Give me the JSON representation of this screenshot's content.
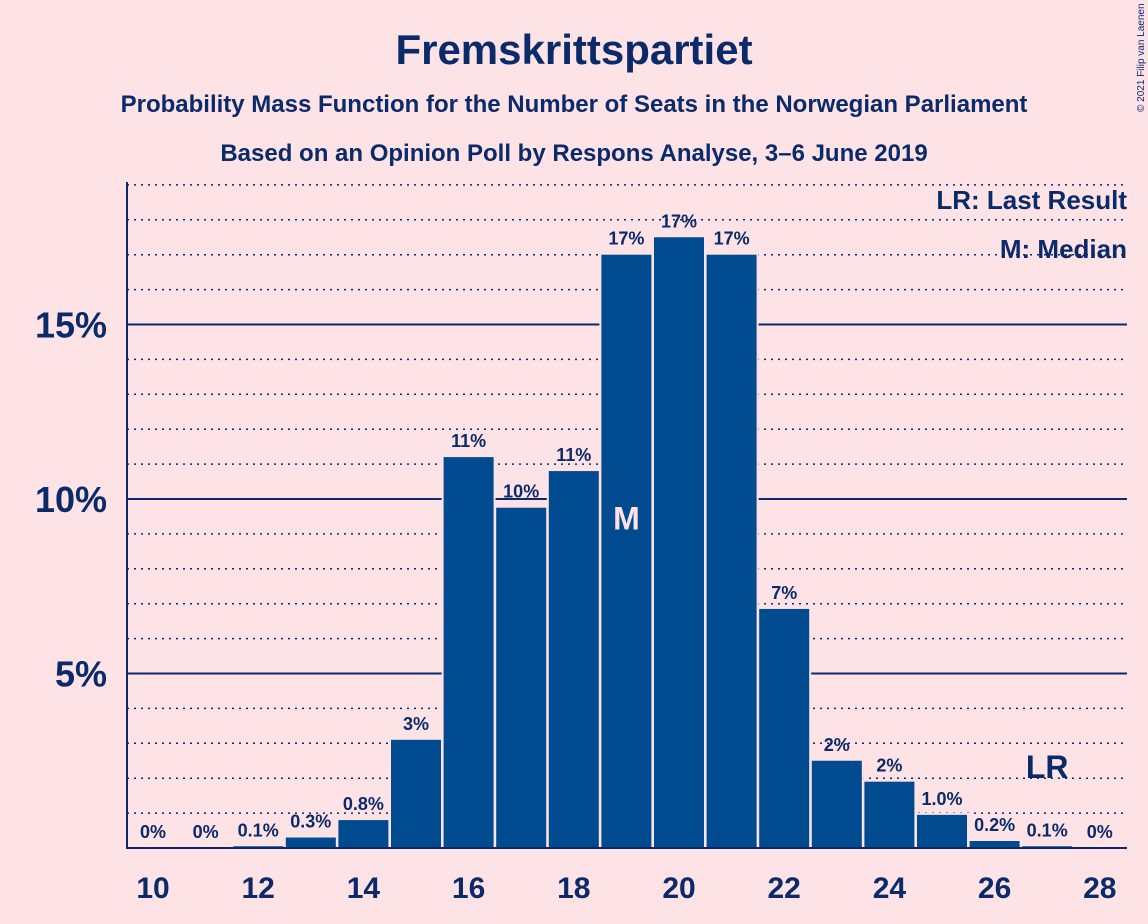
{
  "title": "Fremskrittspartiet",
  "subtitle1": "Probability Mass Function for the Number of Seats in the Norwegian Parliament",
  "subtitle2": "Based on an Opinion Poll by Respons Analyse, 3–6 June 2019",
  "copyright": "© 2021 Filip van Laenen",
  "legend": {
    "lr": "LR: Last Result",
    "m": "M: Median"
  },
  "colors": {
    "background": "#fde3e6",
    "bar": "#004a8f",
    "text": "#0a2a6a"
  },
  "chart_data": {
    "type": "bar",
    "x": [
      10,
      11,
      12,
      13,
      14,
      15,
      16,
      17,
      18,
      19,
      20,
      21,
      22,
      23,
      24,
      25,
      26,
      27,
      28
    ],
    "values": [
      0,
      0,
      0.05,
      0.3,
      0.8,
      3.1,
      11.2,
      9.75,
      10.8,
      17.0,
      17.5,
      17.0,
      6.85,
      2.5,
      1.9,
      0.95,
      0.2,
      0.05,
      0
    ],
    "labels": [
      "0%",
      "0%",
      "0.1%",
      "0.3%",
      "0.8%",
      "3%",
      "11%",
      "10%",
      "11%",
      "17%",
      "17%",
      "17%",
      "7%",
      "2%",
      "2%",
      "1.0%",
      "0.2%",
      "0.1%",
      "0%"
    ],
    "x_tick_labels": [
      "10",
      "12",
      "14",
      "16",
      "18",
      "20",
      "22",
      "24",
      "26",
      "28"
    ],
    "y_ticks": [
      5,
      10,
      15
    ],
    "y_tick_labels": [
      "5%",
      "10%",
      "15%"
    ],
    "y_minor_step": 1,
    "ylim": [
      0,
      19
    ],
    "median": {
      "x": 19,
      "label": "M"
    },
    "last_result": {
      "x": 27,
      "label": "LR"
    },
    "grid": true,
    "legend_position": "top-right"
  }
}
